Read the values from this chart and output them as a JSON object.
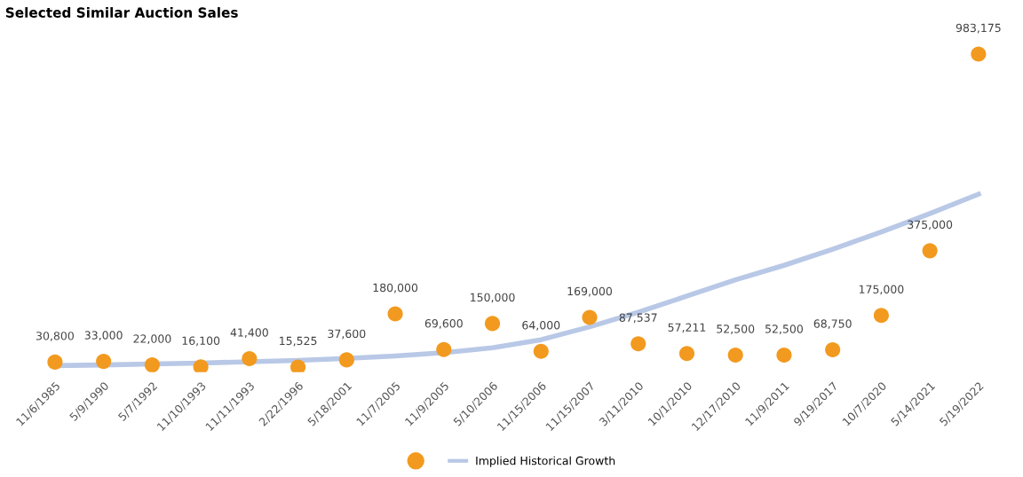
{
  "chart_data": {
    "type": "scatter",
    "title": "Selected Similar Auction Sales",
    "categories": [
      "11/6/1985",
      "5/9/1990",
      "5/7/1992",
      "11/10/1993",
      "11/11/1993",
      "2/22/1996",
      "5/18/2001",
      "11/7/2005",
      "11/9/2005",
      "5/10/2006",
      "11/15/2006",
      "11/15/2007",
      "3/11/2010",
      "10/1/2010",
      "12/17/2010",
      "11/9/2011",
      "9/19/2017",
      "10/7/2020",
      "5/14/2021",
      "5/19/2022"
    ],
    "series": [
      {
        "color": "#f29a1f",
        "marker": "circle",
        "values": [
          30800,
          33000,
          22000,
          16100,
          41400,
          15525,
          37600,
          180000,
          69600,
          150000,
          64000,
          169000,
          87537,
          57211,
          52500,
          52500,
          68750,
          175000,
          375000,
          983175
        ],
        "value_labels": [
          "30,800",
          "33,000",
          "22,000",
          "16,100",
          "41,400",
          "15,525",
          "37,600",
          "180,000",
          "69,600",
          "150,000",
          "64,000",
          "169,000",
          "87,537",
          "57,211",
          "52,500",
          "52,500",
          "68,750",
          "175,000",
          "375,000",
          "983,175"
        ]
      },
      {
        "name": "Implied Historical Growth",
        "type": "line",
        "color": "#b8c8e6",
        "values": [
          20000,
          22000,
          25000,
          28000,
          32000,
          36000,
          42000,
          50000,
          60000,
          75000,
          100000,
          140000,
          185000,
          235000,
          285000,
          330000,
          380000,
          433000,
          490000,
          550000
        ]
      }
    ],
    "tick_labels": "x",
    "legend": "bottom"
  }
}
